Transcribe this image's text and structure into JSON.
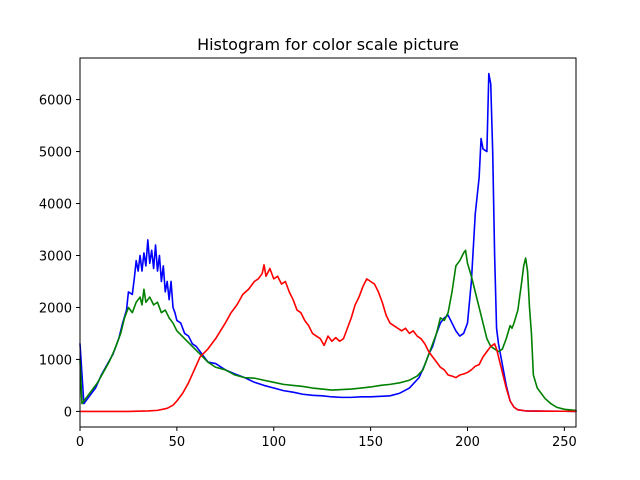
{
  "chart_data": {
    "type": "line",
    "title": "Histogram for color scale picture",
    "xlabel": "",
    "ylabel": "",
    "xlim": [
      0,
      256
    ],
    "ylim": [
      -300,
      6800
    ],
    "x_ticks": [
      0,
      50,
      100,
      150,
      200,
      250
    ],
    "y_ticks": [
      0,
      1000,
      2000,
      3000,
      4000,
      5000,
      6000
    ],
    "grid": false,
    "legend": "none",
    "series": [
      {
        "color": "#0000ff",
        "points": [
          [
            0,
            1300
          ],
          [
            2,
            150
          ],
          [
            5,
            300
          ],
          [
            8,
            450
          ],
          [
            11,
            700
          ],
          [
            14,
            900
          ],
          [
            17,
            1100
          ],
          [
            20,
            1400
          ],
          [
            22,
            1700
          ],
          [
            24,
            1950
          ],
          [
            25,
            2300
          ],
          [
            27,
            2250
          ],
          [
            28,
            2550
          ],
          [
            29,
            2900
          ],
          [
            30,
            2700
          ],
          [
            31,
            3000
          ],
          [
            32,
            2700
          ],
          [
            33,
            3050
          ],
          [
            34,
            2800
          ],
          [
            35,
            3300
          ],
          [
            36,
            2850
          ],
          [
            37,
            3100
          ],
          [
            38,
            2750
          ],
          [
            39,
            3200
          ],
          [
            40,
            2700
          ],
          [
            41,
            3000
          ],
          [
            42,
            2500
          ],
          [
            43,
            2800
          ],
          [
            44,
            2300
          ],
          [
            45,
            2500
          ],
          [
            46,
            2150
          ],
          [
            47,
            2500
          ],
          [
            48,
            2000
          ],
          [
            49,
            1900
          ],
          [
            50,
            1750
          ],
          [
            52,
            1700
          ],
          [
            54,
            1500
          ],
          [
            56,
            1450
          ],
          [
            58,
            1300
          ],
          [
            60,
            1250
          ],
          [
            62,
            1150
          ],
          [
            64,
            1050
          ],
          [
            66,
            950
          ],
          [
            70,
            920
          ],
          [
            75,
            800
          ],
          [
            80,
            720
          ],
          [
            85,
            650
          ],
          [
            90,
            560
          ],
          [
            95,
            500
          ],
          [
            100,
            450
          ],
          [
            105,
            400
          ],
          [
            110,
            370
          ],
          [
            115,
            330
          ],
          [
            120,
            310
          ],
          [
            125,
            300
          ],
          [
            130,
            280
          ],
          [
            135,
            270
          ],
          [
            140,
            270
          ],
          [
            145,
            280
          ],
          [
            150,
            280
          ],
          [
            155,
            290
          ],
          [
            160,
            300
          ],
          [
            165,
            350
          ],
          [
            170,
            450
          ],
          [
            175,
            650
          ],
          [
            178,
            900
          ],
          [
            180,
            1100
          ],
          [
            182,
            1250
          ],
          [
            184,
            1500
          ],
          [
            186,
            1700
          ],
          [
            188,
            1800
          ],
          [
            190,
            1850
          ],
          [
            192,
            1700
          ],
          [
            194,
            1550
          ],
          [
            196,
            1450
          ],
          [
            198,
            1500
          ],
          [
            200,
            1700
          ],
          [
            202,
            2500
          ],
          [
            204,
            3800
          ],
          [
            206,
            4500
          ],
          [
            207,
            5250
          ],
          [
            208,
            5050
          ],
          [
            210,
            5000
          ],
          [
            211,
            6500
          ],
          [
            212,
            6300
          ],
          [
            213,
            5000
          ],
          [
            214,
            3000
          ],
          [
            215,
            1600
          ],
          [
            216,
            1300
          ],
          [
            218,
            900
          ],
          [
            220,
            500
          ],
          [
            222,
            200
          ],
          [
            224,
            80
          ],
          [
            226,
            30
          ],
          [
            230,
            10
          ],
          [
            240,
            5
          ],
          [
            250,
            3
          ],
          [
            256,
            0
          ]
        ]
      },
      {
        "color": "#008000",
        "points": [
          [
            0,
            1000
          ],
          [
            1,
            150
          ],
          [
            3,
            250
          ],
          [
            6,
            400
          ],
          [
            9,
            550
          ],
          [
            12,
            750
          ],
          [
            15,
            950
          ],
          [
            18,
            1200
          ],
          [
            21,
            1500
          ],
          [
            23,
            1800
          ],
          [
            25,
            2000
          ],
          [
            27,
            1900
          ],
          [
            29,
            2100
          ],
          [
            31,
            2200
          ],
          [
            32,
            2050
          ],
          [
            33,
            2350
          ],
          [
            34,
            2100
          ],
          [
            36,
            2200
          ],
          [
            38,
            2050
          ],
          [
            40,
            2100
          ],
          [
            42,
            1900
          ],
          [
            44,
            1950
          ],
          [
            46,
            1800
          ],
          [
            48,
            1700
          ],
          [
            50,
            1550
          ],
          [
            54,
            1400
          ],
          [
            58,
            1250
          ],
          [
            62,
            1100
          ],
          [
            66,
            950
          ],
          [
            70,
            850
          ],
          [
            75,
            800
          ],
          [
            80,
            700
          ],
          [
            85,
            650
          ],
          [
            90,
            640
          ],
          [
            95,
            600
          ],
          [
            100,
            560
          ],
          [
            105,
            520
          ],
          [
            110,
            500
          ],
          [
            115,
            480
          ],
          [
            120,
            450
          ],
          [
            125,
            430
          ],
          [
            130,
            410
          ],
          [
            135,
            420
          ],
          [
            140,
            430
          ],
          [
            145,
            450
          ],
          [
            150,
            470
          ],
          [
            155,
            500
          ],
          [
            160,
            520
          ],
          [
            165,
            550
          ],
          [
            170,
            600
          ],
          [
            174,
            680
          ],
          [
            177,
            800
          ],
          [
            180,
            1100
          ],
          [
            182,
            1300
          ],
          [
            184,
            1500
          ],
          [
            186,
            1800
          ],
          [
            188,
            1750
          ],
          [
            190,
            1900
          ],
          [
            192,
            2300
          ],
          [
            194,
            2800
          ],
          [
            196,
            2900
          ],
          [
            198,
            3050
          ],
          [
            199,
            3100
          ],
          [
            200,
            2850
          ],
          [
            202,
            2600
          ],
          [
            204,
            2300
          ],
          [
            206,
            2000
          ],
          [
            208,
            1700
          ],
          [
            210,
            1400
          ],
          [
            212,
            1250
          ],
          [
            214,
            1200
          ],
          [
            216,
            1150
          ],
          [
            218,
            1200
          ],
          [
            220,
            1400
          ],
          [
            222,
            1650
          ],
          [
            223,
            1600
          ],
          [
            224,
            1700
          ],
          [
            226,
            1950
          ],
          [
            228,
            2500
          ],
          [
            229,
            2800
          ],
          [
            230,
            2950
          ],
          [
            231,
            2700
          ],
          [
            232,
            2000
          ],
          [
            233,
            1500
          ],
          [
            234,
            700
          ],
          [
            236,
            450
          ],
          [
            238,
            350
          ],
          [
            240,
            250
          ],
          [
            243,
            150
          ],
          [
            246,
            80
          ],
          [
            250,
            40
          ],
          [
            256,
            20
          ]
        ]
      },
      {
        "color": "#ff0000",
        "points": [
          [
            0,
            0
          ],
          [
            5,
            0
          ],
          [
            10,
            0
          ],
          [
            15,
            0
          ],
          [
            20,
            0
          ],
          [
            25,
            0
          ],
          [
            30,
            5
          ],
          [
            35,
            10
          ],
          [
            40,
            20
          ],
          [
            45,
            60
          ],
          [
            48,
            120
          ],
          [
            50,
            200
          ],
          [
            53,
            350
          ],
          [
            56,
            550
          ],
          [
            59,
            800
          ],
          [
            62,
            1050
          ],
          [
            66,
            1200
          ],
          [
            70,
            1400
          ],
          [
            75,
            1700
          ],
          [
            78,
            1900
          ],
          [
            81,
            2050
          ],
          [
            84,
            2250
          ],
          [
            87,
            2350
          ],
          [
            90,
            2500
          ],
          [
            92,
            2550
          ],
          [
            94,
            2650
          ],
          [
            95,
            2820
          ],
          [
            96,
            2600
          ],
          [
            98,
            2750
          ],
          [
            100,
            2550
          ],
          [
            102,
            2600
          ],
          [
            104,
            2450
          ],
          [
            106,
            2500
          ],
          [
            108,
            2300
          ],
          [
            110,
            2150
          ],
          [
            112,
            1950
          ],
          [
            114,
            1900
          ],
          [
            116,
            1750
          ],
          [
            118,
            1650
          ],
          [
            120,
            1500
          ],
          [
            122,
            1450
          ],
          [
            124,
            1400
          ],
          [
            126,
            1270
          ],
          [
            128,
            1450
          ],
          [
            130,
            1350
          ],
          [
            132,
            1420
          ],
          [
            134,
            1350
          ],
          [
            136,
            1400
          ],
          [
            138,
            1600
          ],
          [
            140,
            1800
          ],
          [
            142,
            2050
          ],
          [
            144,
            2200
          ],
          [
            146,
            2400
          ],
          [
            148,
            2550
          ],
          [
            150,
            2500
          ],
          [
            152,
            2450
          ],
          [
            154,
            2300
          ],
          [
            156,
            2100
          ],
          [
            158,
            1850
          ],
          [
            160,
            1700
          ],
          [
            162,
            1650
          ],
          [
            164,
            1600
          ],
          [
            166,
            1550
          ],
          [
            168,
            1600
          ],
          [
            170,
            1500
          ],
          [
            172,
            1550
          ],
          [
            174,
            1450
          ],
          [
            176,
            1400
          ],
          [
            178,
            1300
          ],
          [
            180,
            1150
          ],
          [
            182,
            1050
          ],
          [
            184,
            950
          ],
          [
            186,
            850
          ],
          [
            188,
            800
          ],
          [
            190,
            700
          ],
          [
            192,
            680
          ],
          [
            194,
            650
          ],
          [
            196,
            700
          ],
          [
            198,
            720
          ],
          [
            200,
            750
          ],
          [
            202,
            800
          ],
          [
            204,
            870
          ],
          [
            206,
            900
          ],
          [
            208,
            1050
          ],
          [
            210,
            1150
          ],
          [
            212,
            1250
          ],
          [
            214,
            1300
          ],
          [
            215,
            1200
          ],
          [
            216,
            1050
          ],
          [
            218,
            750
          ],
          [
            220,
            450
          ],
          [
            222,
            200
          ],
          [
            224,
            80
          ],
          [
            226,
            30
          ],
          [
            230,
            10
          ],
          [
            240,
            5
          ],
          [
            250,
            3
          ],
          [
            256,
            0
          ]
        ]
      }
    ]
  }
}
